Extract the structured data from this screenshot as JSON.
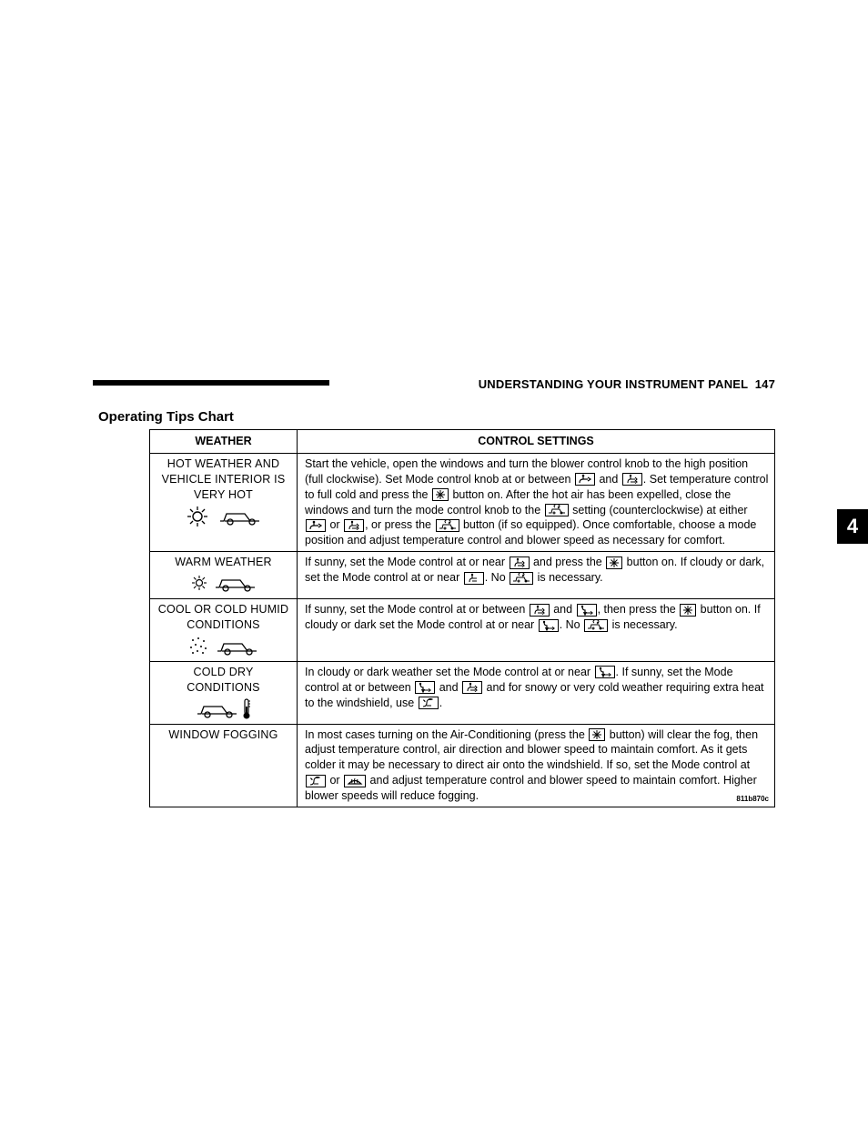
{
  "header": {
    "section_title": "UNDERSTANDING YOUR INSTRUMENT PANEL",
    "page_number": "147"
  },
  "side_tab": "4",
  "title": "Operating Tips Chart",
  "table": {
    "columns": [
      "WEATHER",
      "CONTROL SETTINGS"
    ],
    "footnote": "811b870c",
    "rows": [
      {
        "weather_label": "HOT WEATHER AND VEHICLE INTERIOR IS VERY HOT",
        "weather_icons": [
          "sun-big",
          "car"
        ],
        "settings_parts": [
          "Start the vehicle, open the windows and turn the blower control knob to the high position (full clockwise). Set Mode control knob at or between ",
          {
            "icon": "panel"
          },
          " and ",
          {
            "icon": "bi-level"
          },
          ". Set temperature control to full cold and press the ",
          {
            "icon": "snowflake"
          },
          " button on. After the hot air has been expelled, close the windows and turn the mode control knob to the ",
          {
            "icon": "recirc"
          },
          " setting (counterclockwise) at either ",
          {
            "icon": "panel"
          },
          " or ",
          {
            "icon": "bi-level"
          },
          ", or press the ",
          {
            "icon": "recirc"
          },
          " button (if so equipped). Once comfortable, choose a mode position and adjust temperature control and blower speed as necessary for comfort."
        ]
      },
      {
        "weather_label": "WARM WEATHER",
        "weather_icons": [
          "sun-small",
          "car"
        ],
        "settings_parts": [
          "If sunny, set the Mode control at or near ",
          {
            "icon": "bi-level"
          },
          " and press the ",
          {
            "icon": "snowflake"
          },
          " button on. If cloudy or dark, set the Mode control at or near ",
          {
            "icon": "floor-panel"
          },
          ". No ",
          {
            "icon": "recirc"
          },
          " is necessary."
        ]
      },
      {
        "weather_label": "COOL OR COLD HUMID CONDITIONS",
        "weather_icons": [
          "rain",
          "car"
        ],
        "settings_parts": [
          "If sunny, set the Mode control at or between ",
          {
            "icon": "bi-level"
          },
          " and ",
          {
            "icon": "floor"
          },
          ", then press the ",
          {
            "icon": "snowflake"
          },
          " button on. If cloudy or dark set the Mode control at or near ",
          {
            "icon": "floor"
          },
          ". No ",
          {
            "icon": "recirc"
          },
          " is necessary."
        ]
      },
      {
        "weather_label": "COLD DRY CONDITIONS",
        "weather_icons": [
          "car",
          "thermometer"
        ],
        "settings_parts": [
          "In cloudy or dark weather set the Mode control at or near ",
          {
            "icon": "floor"
          },
          ". If sunny, set the Mode control at or between ",
          {
            "icon": "floor"
          },
          " and ",
          {
            "icon": "bi-level"
          },
          " and for snowy or very cold weather requiring extra heat to the windshield, use ",
          {
            "icon": "mix"
          },
          "."
        ]
      },
      {
        "weather_label": "WINDOW FOGGING",
        "weather_icons": [],
        "settings_parts": [
          "In most cases turning on the Air-Conditioning (press the ",
          {
            "icon": "snowflake"
          },
          " button) will clear the fog, then adjust temperature control, air direction and blower speed to maintain comfort. As it gets colder it may be necessary to direct air onto the windshield. If so, set the Mode control at ",
          {
            "icon": "mix"
          },
          " or ",
          {
            "icon": "defrost"
          },
          " and adjust temperature control and blower speed to maintain comfort. Higher blower speeds will reduce fogging."
        ]
      }
    ]
  },
  "colors": {
    "text": "#000000",
    "bg": "#ffffff",
    "border": "#000000"
  }
}
